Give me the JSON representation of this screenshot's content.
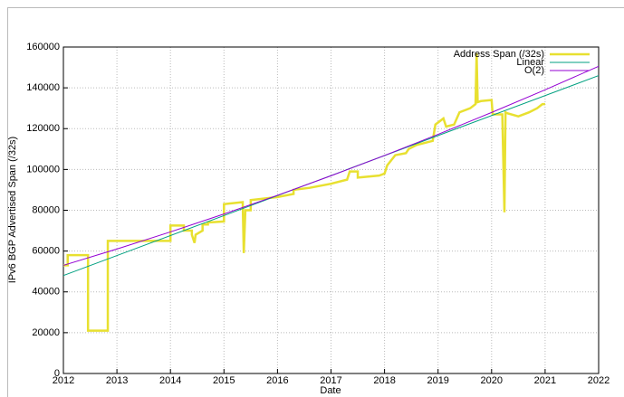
{
  "chart_data": {
    "type": "line",
    "xlabel": "Date",
    "ylabel": "IPv6 BGP Advertised Span (/32s)",
    "xlim": [
      2012,
      2022
    ],
    "xticks": [
      2012,
      2013,
      2014,
      2015,
      2016,
      2017,
      2018,
      2019,
      2020,
      2021,
      2022
    ],
    "ylim": [
      0,
      160000
    ],
    "yticks": [
      0,
      20000,
      40000,
      60000,
      80000,
      100000,
      120000,
      140000,
      160000
    ],
    "grid": true,
    "legend": "top-right",
    "series": [
      {
        "name": "Address Span (/32s)",
        "color": "#e8e030",
        "width": 2.5,
        "x": [
          2012.0,
          2012.08,
          2012.08,
          2012.46,
          2012.46,
          2012.83,
          2012.83,
          2014.0,
          2014.0,
          2014.25,
          2014.25,
          2014.4,
          2014.4,
          2014.45,
          2014.47,
          2014.6,
          2014.6,
          2014.7,
          2014.7,
          2015.0,
          2015.0,
          2015.35,
          2015.37,
          2015.4,
          2015.45,
          2015.5,
          2015.5,
          2016.0,
          2016.3,
          2016.3,
          2016.6,
          2017.0,
          2017.3,
          2017.35,
          2017.5,
          2017.5,
          2017.9,
          2018.0,
          2018.05,
          2018.2,
          2018.4,
          2018.45,
          2018.6,
          2018.9,
          2018.95,
          2019.1,
          2019.15,
          2019.3,
          2019.4,
          2019.6,
          2019.7,
          2019.72,
          2019.74,
          2019.8,
          2020.0,
          2020.02,
          2020.2,
          2020.24,
          2020.26,
          2020.3,
          2020.5,
          2020.7,
          2020.85,
          2020.95,
          2021.0
        ],
        "values": [
          53000,
          53000,
          58000,
          58000,
          21000,
          21000,
          65000,
          65000,
          72500,
          72500,
          70000,
          70000,
          68000,
          64000,
          68000,
          70000,
          73000,
          73000,
          74000,
          74500,
          83000,
          84000,
          59000,
          80000,
          80000,
          80000,
          85000,
          86500,
          88000,
          90000,
          91000,
          93000,
          95000,
          99000,
          99000,
          96000,
          97000,
          98000,
          102000,
          107000,
          108000,
          110000,
          112000,
          114000,
          122000,
          125000,
          121000,
          122000,
          128000,
          130000,
          132000,
          157000,
          133000,
          133500,
          134000,
          127000,
          127000,
          79000,
          128000,
          127500,
          126000,
          128000,
          130000,
          132000,
          132000
        ]
      },
      {
        "name": "Linear",
        "color": "#00a080",
        "width": 1,
        "x": [
          2012,
          2022
        ],
        "values": [
          48000,
          146000
        ]
      },
      {
        "name": "O(2)",
        "color": "#9400d3",
        "width": 1,
        "x": [
          2012,
          2013,
          2014,
          2015,
          2016,
          2017,
          2018,
          2019,
          2020,
          2021,
          2022
        ],
        "values": [
          53000,
          61000,
          69390,
          78170,
          87340,
          96900,
          106850,
          117190,
          127920,
          139040,
          150560
        ]
      }
    ]
  }
}
